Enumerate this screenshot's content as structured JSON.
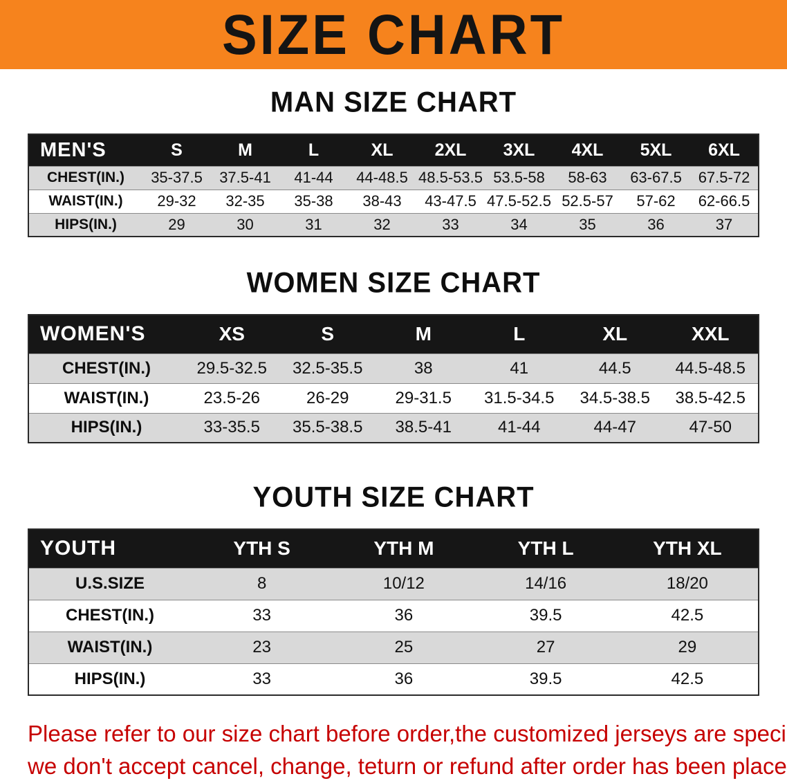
{
  "banner": {
    "title": "SIZE CHART"
  },
  "colors": {
    "banner_bg": "#F6831D",
    "table_header_bg": "#161616",
    "row_stripe": "#D9D9D9",
    "note_text": "#C60000"
  },
  "sections": [
    {
      "id": "men",
      "heading": "MAN SIZE CHART",
      "table": {
        "header": [
          "MEN'S",
          "S",
          "M",
          "L",
          "XL",
          "2XL",
          "3XL",
          "4XL",
          "5XL",
          "6XL"
        ],
        "rows": [
          [
            "CHEST(IN.)",
            "35-37.5",
            "37.5-41",
            "41-44",
            "44-48.5",
            "48.5-53.5",
            "53.5-58",
            "58-63",
            "63-67.5",
            "67.5-72"
          ],
          [
            "WAIST(IN.)",
            "29-32",
            "32-35",
            "35-38",
            "38-43",
            "43-47.5",
            "47.5-52.5",
            "52.5-57",
            "57-62",
            "62-66.5"
          ],
          [
            "HIPS(IN.)",
            "29",
            "30",
            "31",
            "32",
            "33",
            "34",
            "35",
            "36",
            "37"
          ]
        ]
      }
    },
    {
      "id": "women",
      "heading": "WOMEN SIZE CHART",
      "table": {
        "header": [
          "WOMEN'S",
          "XS",
          "S",
          "M",
          "L",
          "XL",
          "XXL"
        ],
        "rows": [
          [
            "CHEST(IN.)",
            "29.5-32.5",
            "32.5-35.5",
            "38",
            "41",
            "44.5",
            "44.5-48.5"
          ],
          [
            "WAIST(IN.)",
            "23.5-26",
            "26-29",
            "29-31.5",
            "31.5-34.5",
            "34.5-38.5",
            "38.5-42.5"
          ],
          [
            "HIPS(IN.)",
            "33-35.5",
            "35.5-38.5",
            "38.5-41",
            "41-44",
            "44-47",
            "47-50"
          ]
        ]
      }
    },
    {
      "id": "youth",
      "heading": "YOUTH SIZE CHART",
      "table": {
        "header": [
          "YOUTH",
          "YTH S",
          "YTH M",
          "YTH L",
          "YTH XL"
        ],
        "rows": [
          [
            "U.S.SIZE",
            "8",
            "10/12",
            "14/16",
            "18/20"
          ],
          [
            "CHEST(IN.)",
            "33",
            "36",
            "39.5",
            "42.5"
          ],
          [
            "WAIST(IN.)",
            "23",
            "25",
            "27",
            "29"
          ],
          [
            "HIPS(IN.)",
            "33",
            "36",
            "39.5",
            "42.5"
          ]
        ]
      }
    }
  ],
  "footer": {
    "lines": [
      "Please refer to our size chart before order,the customized jerseys are special products,",
      "we don't accept cancel, change, teturn or refund after order has been placed!"
    ]
  }
}
